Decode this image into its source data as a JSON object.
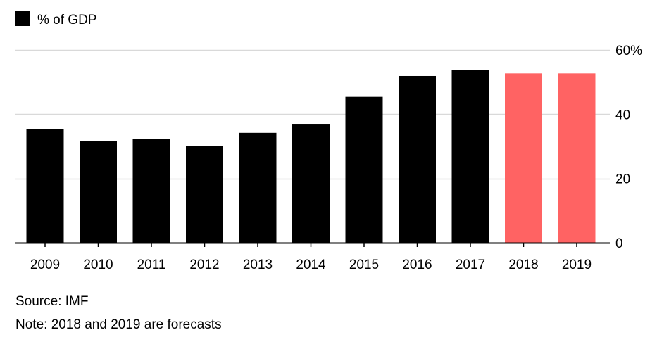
{
  "chart_data": {
    "type": "bar",
    "categories": [
      "2009",
      "2010",
      "2011",
      "2012",
      "2013",
      "2014",
      "2015",
      "2016",
      "2017",
      "2018",
      "2019"
    ],
    "series": [
      {
        "name": "% of GDP",
        "values": [
          35.3,
          31.6,
          32.2,
          30.0,
          34.2,
          37.0,
          45.4,
          51.9,
          53.7,
          52.7,
          52.7
        ]
      }
    ],
    "forecast": [
      false,
      false,
      false,
      false,
      false,
      false,
      false,
      false,
      false,
      true,
      true
    ],
    "ylim": [
      0,
      60
    ],
    "yticks": [
      0,
      20,
      40,
      60
    ],
    "ytick_labels": [
      "0",
      "20",
      "40",
      "60%"
    ],
    "y_axis_side": "right",
    "grid": true,
    "legend_placement": "top-left",
    "colors": {
      "actual": "#000000",
      "forecast": "#ff6363",
      "grid": "#d9d9d9",
      "axis": "#000000"
    }
  },
  "legend": {
    "label": "% of GDP"
  },
  "footer": {
    "source": "Source: IMF",
    "note": "Note: 2018 and 2019 are forecasts"
  }
}
